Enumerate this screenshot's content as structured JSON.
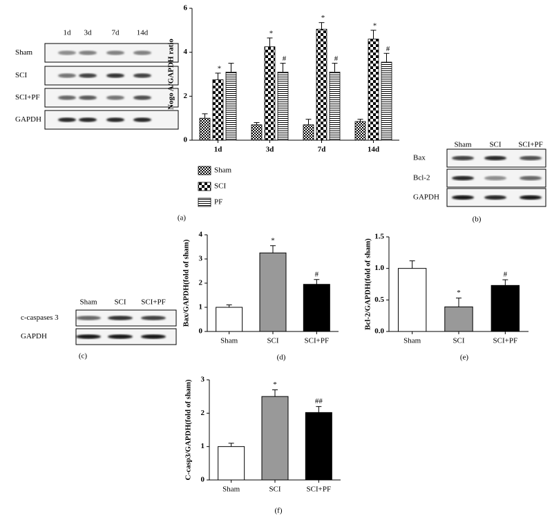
{
  "chart_data": [
    {
      "type": "grouped-bar",
      "caption": "(a)",
      "ylabel": "Nogo A/GAPDH ratio",
      "categories": [
        "1d",
        "3d",
        "7d",
        "14d"
      ],
      "series": [
        {
          "name": "Sham",
          "pattern": "small-checks",
          "values": [
            1.0,
            0.7,
            0.7,
            0.85
          ],
          "errors": [
            0.2,
            0.1,
            0.25,
            0.1
          ],
          "labels": [
            null,
            null,
            null,
            null
          ]
        },
        {
          "name": "SCI",
          "pattern": "large-checks",
          "values": [
            2.75,
            4.25,
            5.05,
            4.6
          ],
          "errors": [
            0.3,
            0.4,
            0.3,
            0.4
          ],
          "labels": [
            "*",
            "*",
            "*",
            "*"
          ]
        },
        {
          "name": "PF",
          "pattern": "horizontal-lines",
          "values": [
            3.1,
            3.1,
            3.1,
            3.55
          ],
          "errors": [
            0.4,
            0.4,
            0.4,
            0.4
          ],
          "labels": [
            null,
            "#",
            "#",
            "#"
          ]
        }
      ],
      "ylim": [
        0,
        6
      ],
      "yticks": [
        0,
        2,
        4,
        6
      ]
    },
    {
      "type": "bar",
      "caption": "(d)",
      "ylabel": "Bax/GAPDH(fold of sham)",
      "categories": [
        "Sham",
        "SCI",
        "SCI+PF"
      ],
      "values": [
        1.0,
        3.25,
        1.95
      ],
      "errors": [
        0.1,
        0.3,
        0.2
      ],
      "labels": [
        null,
        "*",
        "#"
      ],
      "colors": [
        "#ffffff",
        "#999999",
        "#000000"
      ],
      "ylim": [
        0,
        4
      ],
      "yticks": [
        0,
        1,
        2,
        3,
        4
      ]
    },
    {
      "type": "bar",
      "caption": "(e)",
      "ylabel": "Bcl-2/GAPDH(fold of sham)",
      "categories": [
        "Sham",
        "SCI",
        "SCI+PF"
      ],
      "values": [
        1.0,
        0.39,
        0.73
      ],
      "errors": [
        0.12,
        0.14,
        0.09
      ],
      "labels": [
        null,
        "*",
        "#"
      ],
      "colors": [
        "#ffffff",
        "#999999",
        "#000000"
      ],
      "ylim": [
        0,
        1.5
      ],
      "yticks": [
        {
          "value": 0,
          "label": "0.0"
        },
        0.5,
        {
          "value": 1,
          "label": "1.0"
        },
        1.5
      ]
    },
    {
      "type": "bar",
      "caption": "(f)",
      "ylabel": "C-casp3/GAPDH(fold of sham)",
      "categories": [
        "Sham",
        "SCI",
        "SCI+PF"
      ],
      "values": [
        1.0,
        2.5,
        2.02
      ],
      "errors": [
        0.1,
        0.2,
        0.18
      ],
      "labels": [
        null,
        "*",
        "##"
      ],
      "colors": [
        "#ffffff",
        "#999999",
        "#000000"
      ],
      "ylim": [
        0,
        3
      ],
      "yticks": [
        0,
        1,
        2,
        3
      ]
    }
  ],
  "blots": [
    {
      "lanes": [
        "1d",
        "3d",
        "7d",
        "14d"
      ],
      "rows": [
        "Sham",
        "SCI",
        "SCI+PF",
        "GAPDH"
      ]
    },
    {
      "lanes": [
        "Sham",
        "SCI",
        "SCI+PF"
      ],
      "rows": [
        "Bax",
        "Bcl-2",
        "GAPDH"
      ],
      "caption": "(b)"
    },
    {
      "lanes": [
        "Sham",
        "SCI",
        "SCI+PF"
      ],
      "rows": [
        "c-caspases 3",
        "GAPDH"
      ],
      "caption": "(c)"
    }
  ]
}
